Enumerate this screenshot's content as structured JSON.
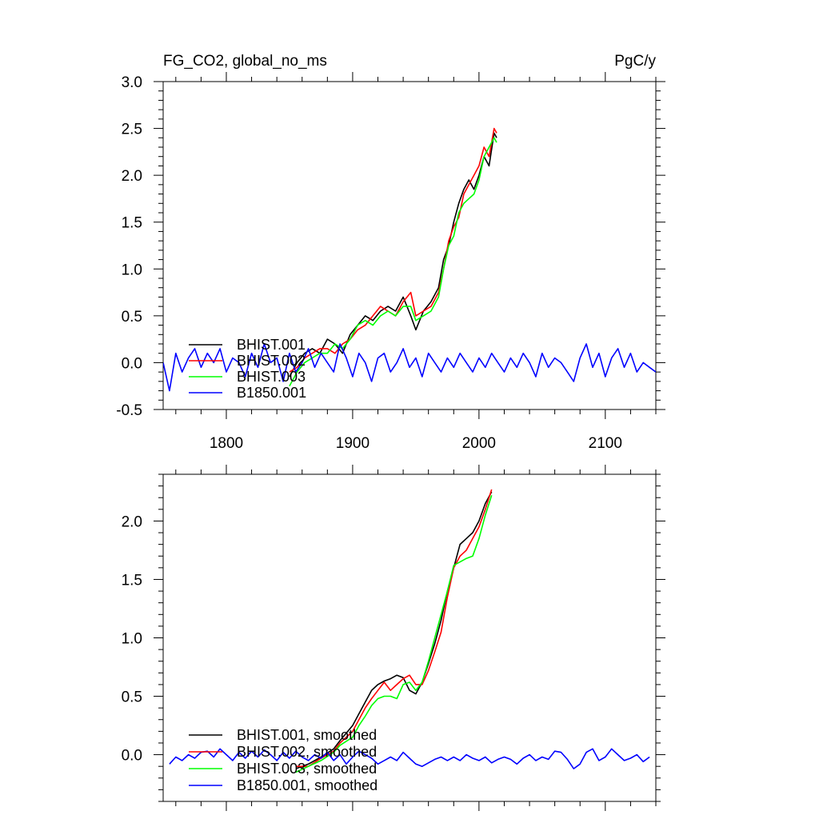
{
  "chart_data": [
    {
      "type": "line",
      "title": "FG_CO2, global_no_ms",
      "units": "PgC/y",
      "xlim": [
        1750,
        2140
      ],
      "ylim": [
        -0.5,
        3.0
      ],
      "x_ticks": [
        1800,
        1900,
        2000,
        2100
      ],
      "x_tick_labels": [
        "1800",
        "1900",
        "2000",
        "2100"
      ],
      "y_ticks": [
        -0.5,
        0.0,
        0.5,
        1.0,
        1.5,
        2.0,
        2.5,
        3.0
      ],
      "y_tick_labels": [
        "-0.5",
        "0.0",
        "0.5",
        "1.0",
        "1.5",
        "2.0",
        "2.5",
        "3.0"
      ],
      "grid": false,
      "legend_position": "bottom-left",
      "series": [
        {
          "name": "BHIST.001",
          "color": "#000000",
          "x": [
            1850,
            1856,
            1862,
            1868,
            1874,
            1880,
            1886,
            1892,
            1898,
            1904,
            1910,
            1916,
            1922,
            1928,
            1934,
            1940,
            1946,
            1950,
            1956,
            1962,
            1968,
            1972,
            1976,
            1980,
            1984,
            1988,
            1992,
            1996,
            2000,
            2004,
            2008,
            2012,
            2014
          ],
          "y": [
            -0.15,
            0.0,
            0.1,
            0.15,
            0.1,
            0.25,
            0.2,
            0.1,
            0.3,
            0.4,
            0.5,
            0.45,
            0.55,
            0.6,
            0.55,
            0.7,
            0.5,
            0.35,
            0.55,
            0.65,
            0.8,
            1.1,
            1.25,
            1.5,
            1.7,
            1.85,
            1.95,
            1.85,
            2.0,
            2.2,
            2.1,
            2.45,
            2.4
          ]
        },
        {
          "name": "BHIST.002",
          "color": "#ff0000",
          "x": [
            1850,
            1856,
            1862,
            1868,
            1874,
            1880,
            1886,
            1892,
            1898,
            1904,
            1910,
            1916,
            1922,
            1928,
            1934,
            1940,
            1946,
            1950,
            1956,
            1962,
            1968,
            1972,
            1976,
            1980,
            1984,
            1988,
            1992,
            1996,
            2000,
            2004,
            2008,
            2012,
            2014
          ],
          "y": [
            -0.1,
            -0.05,
            0.05,
            0.1,
            0.15,
            0.15,
            0.1,
            0.2,
            0.25,
            0.35,
            0.4,
            0.5,
            0.6,
            0.55,
            0.5,
            0.65,
            0.75,
            0.5,
            0.55,
            0.6,
            0.75,
            1.0,
            1.3,
            1.45,
            1.55,
            1.8,
            1.9,
            2.0,
            2.1,
            2.3,
            2.2,
            2.5,
            2.45
          ]
        },
        {
          "name": "BHIST.003",
          "color": "#00ff00",
          "x": [
            1850,
            1856,
            1862,
            1868,
            1874,
            1880,
            1886,
            1892,
            1898,
            1904,
            1910,
            1916,
            1922,
            1928,
            1934,
            1940,
            1946,
            1950,
            1956,
            1962,
            1968,
            1972,
            1976,
            1980,
            1984,
            1988,
            1992,
            1996,
            2000,
            2004,
            2008,
            2012,
            2014
          ],
          "y": [
            -0.25,
            -0.1,
            0.0,
            0.05,
            0.1,
            0.1,
            0.2,
            0.15,
            0.25,
            0.4,
            0.45,
            0.4,
            0.5,
            0.55,
            0.5,
            0.6,
            0.6,
            0.45,
            0.5,
            0.55,
            0.7,
            1.0,
            1.25,
            1.35,
            1.6,
            1.7,
            1.75,
            1.8,
            1.95,
            2.2,
            2.3,
            2.4,
            2.35
          ]
        },
        {
          "name": "B1850.001",
          "color": "#0000ff",
          "x": [
            1750,
            1755,
            1760,
            1765,
            1770,
            1775,
            1780,
            1785,
            1790,
            1795,
            1800,
            1805,
            1810,
            1815,
            1820,
            1825,
            1830,
            1835,
            1840,
            1845,
            1850,
            1855,
            1860,
            1865,
            1870,
            1875,
            1880,
            1885,
            1890,
            1895,
            1900,
            1905,
            1910,
            1915,
            1920,
            1925,
            1930,
            1935,
            1940,
            1945,
            1950,
            1955,
            1960,
            1965,
            1970,
            1975,
            1980,
            1985,
            1990,
            1995,
            2000,
            2005,
            2010,
            2015,
            2020,
            2025,
            2030,
            2035,
            2040,
            2045,
            2050,
            2055,
            2060,
            2065,
            2070,
            2075,
            2080,
            2085,
            2090,
            2095,
            2100,
            2105,
            2110,
            2115,
            2120,
            2125,
            2130,
            2135,
            2140
          ],
          "y": [
            0.0,
            -0.3,
            0.1,
            -0.1,
            0.05,
            0.15,
            -0.05,
            0.1,
            0.0,
            0.15,
            -0.1,
            0.05,
            0.0,
            -0.15,
            0.1,
            -0.05,
            0.2,
            0.0,
            0.05,
            -0.2,
            0.1,
            -0.1,
            0.0,
            0.15,
            -0.05,
            0.1,
            0.0,
            -0.1,
            0.2,
            0.05,
            -0.15,
            0.1,
            0.0,
            -0.2,
            0.05,
            0.1,
            -0.1,
            0.0,
            0.15,
            -0.05,
            0.05,
            -0.15,
            0.1,
            0.0,
            -0.1,
            0.05,
            -0.05,
            0.1,
            0.0,
            -0.1,
            0.05,
            -0.05,
            0.1,
            0.0,
            -0.1,
            0.05,
            -0.05,
            0.1,
            0.0,
            -0.15,
            0.1,
            -0.05,
            0.05,
            0.0,
            -0.1,
            -0.2,
            0.05,
            0.2,
            -0.05,
            0.1,
            -0.15,
            0.05,
            0.15,
            -0.05,
            0.1,
            -0.1,
            0.0,
            -0.05,
            -0.1
          ]
        }
      ]
    },
    {
      "type": "line",
      "xlim": [
        1750,
        2140
      ],
      "ylim": [
        -0.4,
        2.4
      ],
      "x_ticks": [
        1800,
        1900,
        2000,
        2100
      ],
      "x_tick_labels": [],
      "y_ticks": [
        0.0,
        0.5,
        1.0,
        1.5,
        2.0
      ],
      "y_tick_labels": [
        "0.0",
        "0.5",
        "1.0",
        "1.5",
        "2.0"
      ],
      "grid": false,
      "legend_position": "bottom-left",
      "series": [
        {
          "name": "BHIST.001, smoothed",
          "color": "#000000",
          "x": [
            1855,
            1865,
            1875,
            1885,
            1890,
            1900,
            1905,
            1910,
            1915,
            1920,
            1925,
            1930,
            1935,
            1940,
            1945,
            1950,
            1955,
            1960,
            1965,
            1970,
            1975,
            1980,
            1985,
            1990,
            1995,
            2000,
            2005,
            2010
          ],
          "y": [
            -0.12,
            -0.08,
            -0.02,
            0.05,
            0.12,
            0.25,
            0.35,
            0.45,
            0.55,
            0.6,
            0.63,
            0.65,
            0.68,
            0.66,
            0.55,
            0.52,
            0.62,
            0.78,
            0.95,
            1.15,
            1.4,
            1.6,
            1.8,
            1.85,
            1.9,
            2.0,
            2.15,
            2.25
          ]
        },
        {
          "name": "BHIST.002, smoothed",
          "color": "#ff0000",
          "x": [
            1855,
            1865,
            1875,
            1885,
            1890,
            1900,
            1905,
            1910,
            1915,
            1920,
            1925,
            1930,
            1935,
            1940,
            1945,
            1950,
            1955,
            1960,
            1965,
            1970,
            1975,
            1980,
            1985,
            1990,
            1995,
            2000,
            2005,
            2010
          ],
          "y": [
            -0.1,
            -0.1,
            -0.03,
            0.03,
            0.1,
            0.2,
            0.3,
            0.4,
            0.48,
            0.55,
            0.62,
            0.55,
            0.6,
            0.65,
            0.68,
            0.6,
            0.6,
            0.72,
            0.88,
            1.05,
            1.35,
            1.6,
            1.7,
            1.75,
            1.85,
            1.95,
            2.1,
            2.27
          ]
        },
        {
          "name": "BHIST.003, smoothed",
          "color": "#00ff00",
          "x": [
            1855,
            1865,
            1875,
            1885,
            1890,
            1900,
            1905,
            1910,
            1915,
            1920,
            1925,
            1930,
            1935,
            1940,
            1945,
            1950,
            1955,
            1960,
            1965,
            1970,
            1975,
            1980,
            1985,
            1990,
            1995,
            2000,
            2005,
            2010
          ],
          "y": [
            -0.15,
            -0.1,
            -0.05,
            0.02,
            0.08,
            0.15,
            0.25,
            0.33,
            0.42,
            0.48,
            0.5,
            0.5,
            0.48,
            0.6,
            0.62,
            0.55,
            0.62,
            0.8,
            1.0,
            1.2,
            1.4,
            1.62,
            1.65,
            1.68,
            1.7,
            1.85,
            2.05,
            2.22
          ]
        },
        {
          "name": "B1850.001, smoothed",
          "color": "#0000ff",
          "x": [
            1755,
            1760,
            1765,
            1770,
            1775,
            1780,
            1785,
            1790,
            1795,
            1800,
            1805,
            1810,
            1815,
            1820,
            1825,
            1830,
            1835,
            1840,
            1845,
            1850,
            1855,
            1860,
            1865,
            1870,
            1875,
            1880,
            1885,
            1890,
            1895,
            1900,
            1905,
            1910,
            1915,
            1920,
            1925,
            1930,
            1935,
            1940,
            1945,
            1950,
            1955,
            1960,
            1965,
            1970,
            1975,
            1980,
            1985,
            1990,
            1995,
            2000,
            2005,
            2010,
            2015,
            2020,
            2025,
            2030,
            2035,
            2040,
            2045,
            2050,
            2055,
            2060,
            2065,
            2070,
            2075,
            2080,
            2085,
            2090,
            2095,
            2100,
            2105,
            2110,
            2115,
            2120,
            2125,
            2130,
            2135
          ],
          "y": [
            -0.08,
            -0.02,
            -0.05,
            0.0,
            -0.03,
            0.02,
            0.03,
            -0.02,
            0.05,
            0.0,
            -0.05,
            0.02,
            -0.03,
            0.03,
            -0.02,
            0.04,
            0.0,
            -0.05,
            0.02,
            -0.03,
            0.03,
            -0.02,
            -0.05,
            0.0,
            -0.03,
            0.02,
            -0.05,
            0.0,
            -0.08,
            -0.02,
            0.03,
            0.0,
            -0.03,
            -0.08,
            -0.05,
            -0.02,
            -0.05,
            0.02,
            -0.03,
            -0.08,
            -0.1,
            -0.07,
            -0.04,
            -0.02,
            -0.05,
            -0.02,
            -0.05,
            0.0,
            -0.03,
            -0.05,
            -0.02,
            -0.07,
            -0.04,
            -0.02,
            -0.04,
            -0.08,
            -0.03,
            0.0,
            -0.05,
            -0.02,
            -0.04,
            0.03,
            0.02,
            -0.04,
            -0.12,
            -0.08,
            0.02,
            0.05,
            -0.05,
            -0.02,
            0.05,
            0.0,
            -0.05,
            -0.03,
            0.0,
            -0.06,
            -0.02
          ]
        }
      ]
    }
  ]
}
